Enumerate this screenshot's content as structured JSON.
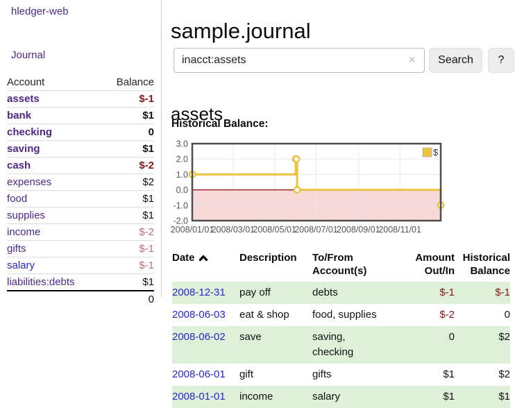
{
  "app": {
    "brand": "hledger-web",
    "nav_journal": "Journal"
  },
  "sidebar": {
    "header": {
      "account": "Account",
      "balance": "Balance"
    },
    "accounts": [
      {
        "name": "assets",
        "balance": "$-1"
      },
      {
        "name": "bank",
        "balance": "$1"
      },
      {
        "name": "checking",
        "balance": "0"
      },
      {
        "name": "saving",
        "balance": "$1"
      },
      {
        "name": "cash",
        "balance": "$-2"
      },
      {
        "name": "expenses",
        "balance": "$2"
      },
      {
        "name": "food",
        "balance": "$1"
      },
      {
        "name": "supplies",
        "balance": "$1"
      },
      {
        "name": "income",
        "balance": "$-2"
      },
      {
        "name": "gifts",
        "balance": "$-1"
      },
      {
        "name": "salary",
        "balance": "$-1"
      },
      {
        "name": "liabilities:debts",
        "balance": "$1"
      }
    ],
    "total": "0"
  },
  "main": {
    "title": "sample.journal",
    "search": {
      "value": "inacct:assets",
      "button_label": "Search",
      "help_label": "?"
    },
    "account_heading": "assets",
    "chart_heading": "Historical Balance:"
  },
  "icons": {
    "clear": "×",
    "sort_ascending": "chevron-up"
  },
  "palette": {
    "link_purple": "#4c2889",
    "link_blue": "#2626cc",
    "negative_red": "#8b1414",
    "muted_negative": "#c0706e",
    "row_green": "#dff0d8",
    "series_yellow": "#edc240"
  },
  "chart_data": {
    "type": "line",
    "step": true,
    "title": "Historical Balance:",
    "legend": "$",
    "legend_position": "top-right",
    "grid": true,
    "ylim": [
      -2,
      3
    ],
    "xlim_days": [
      0,
      365
    ],
    "series": [
      {
        "name": "$",
        "color": "#edc240",
        "dates": [
          "2008-01-01",
          "2008-06-01",
          "2008-06-02",
          "2008-06-03",
          "2008-12-31"
        ],
        "points": [
          [
            0,
            1
          ],
          [
            152,
            2
          ],
          [
            153,
            2
          ],
          [
            154,
            0
          ],
          [
            365,
            -1
          ]
        ]
      }
    ],
    "y_ticks": [
      {
        "label": "3.0",
        "value": 3
      },
      {
        "label": "2.0",
        "value": 2
      },
      {
        "label": "1.0",
        "value": 1
      },
      {
        "label": "0.0",
        "value": 0
      },
      {
        "label": "-1.0",
        "value": -1
      },
      {
        "label": "-2.0",
        "value": -2
      }
    ],
    "x_ticks": [
      {
        "label": "2008/01/01",
        "day": 0
      },
      {
        "label": "2008/03/01",
        "day": 60
      },
      {
        "label": "2008/05/01",
        "day": 121
      },
      {
        "label": "2008/07/01",
        "day": 182
      },
      {
        "label": "2008/09/01",
        "day": 244
      },
      {
        "label": "2008/11/01",
        "day": 305
      }
    ],
    "zero_line_color": "#8b0000",
    "negative_fill": "#f8d9d9",
    "grid_color": "#e6e6e6",
    "border_color": "#4d4d4d"
  },
  "register": {
    "columns": {
      "date": "Date",
      "description": "Description",
      "accounts_line1": "To/From",
      "accounts_line2": "Account(s)",
      "amount_line1": "Amount",
      "amount_line2": "Out/In",
      "balance_line1": "Historical",
      "balance_line2": "Balance"
    },
    "rows": [
      {
        "date": "2008-12-31",
        "description": "pay off",
        "accounts": "debts",
        "amount": "$-1",
        "balance": "$-1"
      },
      {
        "date": "2008-06-03",
        "description": "eat & shop",
        "accounts": "food, supplies",
        "amount": "$-2",
        "balance": "0"
      },
      {
        "date": "2008-06-02",
        "description": "save",
        "accounts": "saving,\nchecking",
        "amount": "0",
        "balance": "$2"
      },
      {
        "date": "2008-06-01",
        "description": "gift",
        "accounts": "gifts",
        "amount": "$1",
        "balance": "$2"
      },
      {
        "date": "2008-01-01",
        "description": "income",
        "accounts": "salary",
        "amount": "$1",
        "balance": "$1"
      }
    ]
  }
}
